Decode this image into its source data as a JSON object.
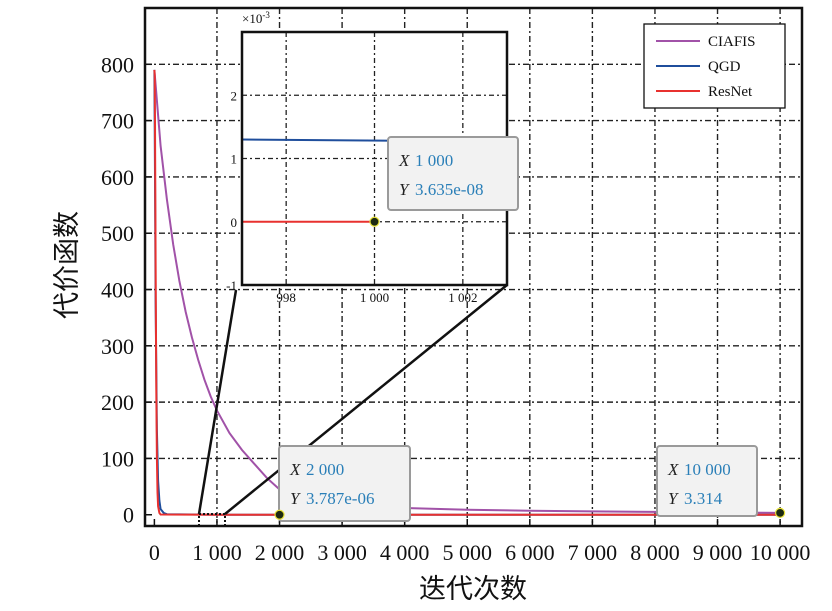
{
  "chart_data": {
    "type": "line",
    "xlabel": "迭代次数",
    "ylabel": "代价函数",
    "xlim": [
      -150,
      10350
    ],
    "ylim": [
      -20,
      900
    ],
    "xticks": [
      0,
      1000,
      2000,
      3000,
      4000,
      5000,
      6000,
      7000,
      8000,
      9000,
      10000
    ],
    "xtick_labels": [
      "0",
      "1 000",
      "2 000",
      "3 000",
      "4 000",
      "5 000",
      "6 000",
      "7 000",
      "8 000",
      "9 000",
      "10 000"
    ],
    "yticks": [
      0,
      100,
      200,
      300,
      400,
      500,
      600,
      700,
      800
    ],
    "ytick_labels": [
      "0",
      "100",
      "200",
      "300",
      "400",
      "500",
      "600",
      "700",
      "800"
    ],
    "grid": true,
    "legend_position": "top-right",
    "series": [
      {
        "name": "CIAFIS",
        "color": "#a152a8",
        "x": [
          0,
          100,
          200,
          300,
          400,
          500,
          600,
          700,
          800,
          900,
          1000,
          1200,
          1400,
          1600,
          1800,
          2000,
          2500,
          3000,
          3500,
          4000,
          5000,
          6000,
          7000,
          8000,
          9000,
          10000
        ],
        "y": [
          790,
          655,
          560,
          480,
          415,
          360,
          315,
          275,
          240,
          210,
          185,
          145,
          115,
          90,
          65,
          45,
          25,
          18,
          14,
          12,
          9,
          7,
          6,
          5,
          4,
          3.314
        ]
      },
      {
        "name": "QGD",
        "color": "#1f4e9c",
        "x": [
          0,
          10,
          20,
          40,
          60,
          80,
          100,
          150,
          200,
          1000,
          2000,
          10000
        ],
        "y": [
          790,
          600,
          380,
          150,
          60,
          25,
          10,
          3,
          1,
          0.0013,
          3.787e-06,
          0
        ]
      },
      {
        "name": "ResNet",
        "color": "#e8312f",
        "x": [
          0,
          5,
          10,
          20,
          30,
          40,
          50,
          60,
          80,
          100,
          1000,
          10000
        ],
        "y": [
          790,
          780,
          700,
          450,
          220,
          100,
          40,
          15,
          3,
          0.5,
          3.635e-08,
          0
        ]
      }
    ],
    "inset": {
      "x_range": [
        997,
        1003
      ],
      "y_range": [
        -1,
        3
      ],
      "y_scale_label": "×10",
      "y_scale_exponent": "-3",
      "xticks": [
        998,
        1000,
        1002
      ],
      "xtick_labels": [
        "998",
        "1 000",
        "1 002"
      ],
      "yticks": [
        -1,
        0,
        1,
        2
      ],
      "ytick_labels": [
        "-1",
        "0",
        "1",
        "2"
      ],
      "qgd_value": 1.3,
      "resnet_value": 0
    },
    "annotations": [
      {
        "x_key": "X",
        "x_value": "1 000",
        "y_key": "Y",
        "y_value": "3.635e-08"
      },
      {
        "x_key": "X",
        "x_value": "2 000",
        "y_key": "Y",
        "y_value": "3.787e-06"
      },
      {
        "x_key": "X",
        "x_value": "10 000",
        "y_key": "Y",
        "y_value": "3.314"
      }
    ]
  }
}
